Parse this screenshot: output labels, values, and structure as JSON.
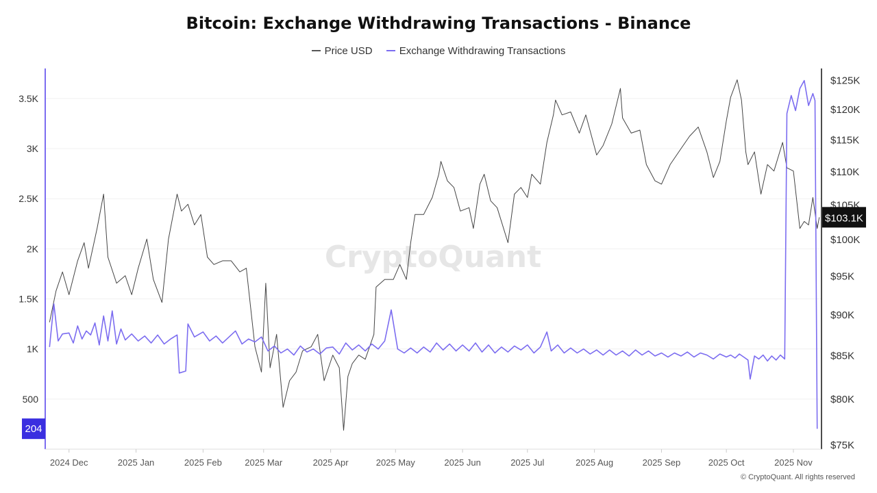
{
  "title": "Bitcoin: Exchange Withdrawing Transactions - Binance",
  "legend": [
    {
      "label": "Price USD",
      "color": "#555555"
    },
    {
      "label": "Exchange Withdrawing Transactions",
      "color": "#7b6cf0"
    }
  ],
  "watermark": "CryptoQuant",
  "copyright": "© CryptoQuant. All rights reserved",
  "chart_data": {
    "type": "line",
    "title": "Bitcoin: Exchange Withdrawing Transactions - Binance",
    "x_ticks": [
      "2024 Dec",
      "2025 Jan",
      "2025 Feb",
      "2025 Mar",
      "2025 Apr",
      "2025 May",
      "2025 Jun",
      "2025 Jul",
      "2025 Aug",
      "2025 Sep",
      "2025 Oct",
      "2025 Nov"
    ],
    "x_tick_dates": [
      "2024-12-01",
      "2025-01-01",
      "2025-02-01",
      "2025-03-01",
      "2025-04-01",
      "2025-05-01",
      "2025-06-01",
      "2025-07-01",
      "2025-08-01",
      "2025-09-01",
      "2025-10-01",
      "2025-11-01"
    ],
    "y_left": {
      "ticks": [
        "500",
        "1K",
        "1.5K",
        "2K",
        "2.5K",
        "3K",
        "3.5K"
      ],
      "range": [
        0,
        3800
      ]
    },
    "y_right": {
      "ticks": [
        "$75K",
        "$80K",
        "$85K",
        "$90K",
        "$95K",
        "$100K",
        "$105K",
        "$110K",
        "$115K",
        "$120K",
        "$125K"
      ],
      "scale": "log",
      "range": [
        74500,
        127000
      ]
    },
    "last_values": {
      "transactions": "204",
      "price": "$103.1K"
    },
    "grid": "horizontal",
    "legend_position": "top-center",
    "series": [
      {
        "name": "Price USD",
        "axis": "right",
        "color": "#444444",
        "points": [
          [
            "2024-11-22",
            89000
          ],
          [
            "2024-11-25",
            93000
          ],
          [
            "2024-11-28",
            95500
          ],
          [
            "2024-12-01",
            92500
          ],
          [
            "2024-12-05",
            97000
          ],
          [
            "2024-12-08",
            99500
          ],
          [
            "2024-12-10",
            96000
          ],
          [
            "2024-12-14",
            101500
          ],
          [
            "2024-12-17",
            106500
          ],
          [
            "2024-12-19",
            97500
          ],
          [
            "2024-12-23",
            94000
          ],
          [
            "2024-12-27",
            95000
          ],
          [
            "2024-12-30",
            92500
          ],
          [
            "2025-01-02",
            96000
          ],
          [
            "2025-01-06",
            100000
          ],
          [
            "2025-01-09",
            94500
          ],
          [
            "2025-01-13",
            91500
          ],
          [
            "2025-01-16",
            100000
          ],
          [
            "2025-01-20",
            106500
          ],
          [
            "2025-01-22",
            104000
          ],
          [
            "2025-01-25",
            105000
          ],
          [
            "2025-01-28",
            102000
          ],
          [
            "2025-01-31",
            103500
          ],
          [
            "2025-02-03",
            97500
          ],
          [
            "2025-02-06",
            96500
          ],
          [
            "2025-02-10",
            97000
          ],
          [
            "2025-02-14",
            97000
          ],
          [
            "2025-02-18",
            95500
          ],
          [
            "2025-02-21",
            96000
          ],
          [
            "2025-02-25",
            86000
          ],
          [
            "2025-02-28",
            83000
          ],
          [
            "2025-03-02",
            94000
          ],
          [
            "2025-03-04",
            83500
          ],
          [
            "2025-03-07",
            87500
          ],
          [
            "2025-03-10",
            79000
          ],
          [
            "2025-03-13",
            82000
          ],
          [
            "2025-03-16",
            83000
          ],
          [
            "2025-03-19",
            85500
          ],
          [
            "2025-03-23",
            86000
          ],
          [
            "2025-03-26",
            87500
          ],
          [
            "2025-03-29",
            82000
          ],
          [
            "2025-04-02",
            85000
          ],
          [
            "2025-04-05",
            83500
          ],
          [
            "2025-04-07",
            76500
          ],
          [
            "2025-04-09",
            82500
          ],
          [
            "2025-04-11",
            84000
          ],
          [
            "2025-04-14",
            85000
          ],
          [
            "2025-04-17",
            84500
          ],
          [
            "2025-04-21",
            87500
          ],
          [
            "2025-04-22",
            93500
          ],
          [
            "2025-04-26",
            94500
          ],
          [
            "2025-04-30",
            94500
          ],
          [
            "2025-05-03",
            96500
          ],
          [
            "2025-05-06",
            94500
          ],
          [
            "2025-05-08",
            99500
          ],
          [
            "2025-05-10",
            103500
          ],
          [
            "2025-05-14",
            103500
          ],
          [
            "2025-05-18",
            106000
          ],
          [
            "2025-05-21",
            109500
          ],
          [
            "2025-05-22",
            111500
          ],
          [
            "2025-05-25",
            108500
          ],
          [
            "2025-05-28",
            107500
          ],
          [
            "2025-05-31",
            104000
          ],
          [
            "2025-06-04",
            104500
          ],
          [
            "2025-06-06",
            101500
          ],
          [
            "2025-06-09",
            108000
          ],
          [
            "2025-06-11",
            109500
          ],
          [
            "2025-06-14",
            105500
          ],
          [
            "2025-06-17",
            104500
          ],
          [
            "2025-06-22",
            99500
          ],
          [
            "2025-06-25",
            106500
          ],
          [
            "2025-06-28",
            107500
          ],
          [
            "2025-07-01",
            106000
          ],
          [
            "2025-07-03",
            109500
          ],
          [
            "2025-07-07",
            108000
          ],
          [
            "2025-07-10",
            114500
          ],
          [
            "2025-07-13",
            119000
          ],
          [
            "2025-07-14",
            121500
          ],
          [
            "2025-07-17",
            119000
          ],
          [
            "2025-07-21",
            119500
          ],
          [
            "2025-07-25",
            116000
          ],
          [
            "2025-07-28",
            119000
          ],
          [
            "2025-08-02",
            112500
          ],
          [
            "2025-08-05",
            114000
          ],
          [
            "2025-08-09",
            117500
          ],
          [
            "2025-08-13",
            123500
          ],
          [
            "2025-08-14",
            118500
          ],
          [
            "2025-08-18",
            116000
          ],
          [
            "2025-08-22",
            116500
          ],
          [
            "2025-08-25",
            111000
          ],
          [
            "2025-08-29",
            108500
          ],
          [
            "2025-09-01",
            108000
          ],
          [
            "2025-09-05",
            111000
          ],
          [
            "2025-09-10",
            113500
          ],
          [
            "2025-09-14",
            115500
          ],
          [
            "2025-09-18",
            117000
          ],
          [
            "2025-09-22",
            113000
          ],
          [
            "2025-09-25",
            109000
          ],
          [
            "2025-09-28",
            111500
          ],
          [
            "2025-10-01",
            118000
          ],
          [
            "2025-10-03",
            122000
          ],
          [
            "2025-10-06",
            125000
          ],
          [
            "2025-10-08",
            121500
          ],
          [
            "2025-10-10",
            113000
          ],
          [
            "2025-10-11",
            111000
          ],
          [
            "2025-10-14",
            113000
          ],
          [
            "2025-10-17",
            106500
          ],
          [
            "2025-10-20",
            111000
          ],
          [
            "2025-10-23",
            110000
          ],
          [
            "2025-10-27",
            114500
          ],
          [
            "2025-10-29",
            110500
          ],
          [
            "2025-11-01",
            110000
          ],
          [
            "2025-11-04",
            101500
          ],
          [
            "2025-11-06",
            102500
          ],
          [
            "2025-11-08",
            102000
          ],
          [
            "2025-11-10",
            106000
          ],
          [
            "2025-11-12",
            101500
          ],
          [
            "2025-11-13",
            103100
          ]
        ]
      },
      {
        "name": "Exchange Withdrawing Transactions",
        "axis": "left",
        "color": "#7b6cf0",
        "points": [
          [
            "2024-11-22",
            1020
          ],
          [
            "2024-11-24",
            1450
          ],
          [
            "2024-11-26",
            1080
          ],
          [
            "2024-11-28",
            1150
          ],
          [
            "2024-12-01",
            1160
          ],
          [
            "2024-12-03",
            1060
          ],
          [
            "2024-12-05",
            1230
          ],
          [
            "2024-12-07",
            1100
          ],
          [
            "2024-12-09",
            1180
          ],
          [
            "2024-12-11",
            1140
          ],
          [
            "2024-12-13",
            1260
          ],
          [
            "2024-12-15",
            1040
          ],
          [
            "2024-12-17",
            1330
          ],
          [
            "2024-12-19",
            1080
          ],
          [
            "2024-12-21",
            1380
          ],
          [
            "2024-12-23",
            1050
          ],
          [
            "2024-12-25",
            1200
          ],
          [
            "2024-12-27",
            1090
          ],
          [
            "2024-12-30",
            1150
          ],
          [
            "2025-01-02",
            1080
          ],
          [
            "2025-01-05",
            1130
          ],
          [
            "2025-01-08",
            1060
          ],
          [
            "2025-01-11",
            1140
          ],
          [
            "2025-01-14",
            1050
          ],
          [
            "2025-01-17",
            1100
          ],
          [
            "2025-01-20",
            1140
          ],
          [
            "2025-01-21",
            760
          ],
          [
            "2025-01-24",
            780
          ],
          [
            "2025-01-25",
            1250
          ],
          [
            "2025-01-28",
            1120
          ],
          [
            "2025-02-01",
            1170
          ],
          [
            "2025-02-04",
            1080
          ],
          [
            "2025-02-07",
            1130
          ],
          [
            "2025-02-10",
            1060
          ],
          [
            "2025-02-13",
            1120
          ],
          [
            "2025-02-16",
            1180
          ],
          [
            "2025-02-19",
            1050
          ],
          [
            "2025-02-22",
            1100
          ],
          [
            "2025-02-25",
            1070
          ],
          [
            "2025-02-28",
            1120
          ],
          [
            "2025-03-03",
            980
          ],
          [
            "2025-03-06",
            1030
          ],
          [
            "2025-03-09",
            960
          ],
          [
            "2025-03-12",
            1000
          ],
          [
            "2025-03-15",
            940
          ],
          [
            "2025-03-18",
            1030
          ],
          [
            "2025-03-21",
            970
          ],
          [
            "2025-03-24",
            1000
          ],
          [
            "2025-03-27",
            950
          ],
          [
            "2025-03-30",
            1010
          ],
          [
            "2025-04-02",
            1020
          ],
          [
            "2025-04-05",
            950
          ],
          [
            "2025-04-08",
            1060
          ],
          [
            "2025-04-11",
            990
          ],
          [
            "2025-04-14",
            1040
          ],
          [
            "2025-04-17",
            980
          ],
          [
            "2025-04-20",
            1050
          ],
          [
            "2025-04-23",
            1000
          ],
          [
            "2025-04-26",
            1080
          ],
          [
            "2025-04-29",
            1390
          ],
          [
            "2025-05-02",
            1000
          ],
          [
            "2025-05-05",
            960
          ],
          [
            "2025-05-08",
            1010
          ],
          [
            "2025-05-11",
            960
          ],
          [
            "2025-05-14",
            1020
          ],
          [
            "2025-05-17",
            970
          ],
          [
            "2025-05-20",
            1060
          ],
          [
            "2025-05-23",
            990
          ],
          [
            "2025-05-26",
            1050
          ],
          [
            "2025-05-29",
            980
          ],
          [
            "2025-06-01",
            1040
          ],
          [
            "2025-06-04",
            980
          ],
          [
            "2025-06-07",
            1060
          ],
          [
            "2025-06-10",
            970
          ],
          [
            "2025-06-13",
            1040
          ],
          [
            "2025-06-16",
            960
          ],
          [
            "2025-06-19",
            1020
          ],
          [
            "2025-06-22",
            970
          ],
          [
            "2025-06-25",
            1030
          ],
          [
            "2025-06-28",
            990
          ],
          [
            "2025-07-01",
            1040
          ],
          [
            "2025-07-04",
            960
          ],
          [
            "2025-07-07",
            1020
          ],
          [
            "2025-07-10",
            1170
          ],
          [
            "2025-07-12",
            980
          ],
          [
            "2025-07-15",
            1040
          ],
          [
            "2025-07-18",
            960
          ],
          [
            "2025-07-21",
            1010
          ],
          [
            "2025-07-24",
            960
          ],
          [
            "2025-07-27",
            1000
          ],
          [
            "2025-07-30",
            950
          ],
          [
            "2025-08-02",
            990
          ],
          [
            "2025-08-05",
            940
          ],
          [
            "2025-08-08",
            990
          ],
          [
            "2025-08-11",
            940
          ],
          [
            "2025-08-14",
            980
          ],
          [
            "2025-08-17",
            930
          ],
          [
            "2025-08-20",
            990
          ],
          [
            "2025-08-23",
            940
          ],
          [
            "2025-08-26",
            980
          ],
          [
            "2025-08-29",
            930
          ],
          [
            "2025-09-01",
            960
          ],
          [
            "2025-09-04",
            920
          ],
          [
            "2025-09-07",
            960
          ],
          [
            "2025-09-10",
            930
          ],
          [
            "2025-09-13",
            970
          ],
          [
            "2025-09-16",
            920
          ],
          [
            "2025-09-19",
            960
          ],
          [
            "2025-09-22",
            940
          ],
          [
            "2025-09-25",
            900
          ],
          [
            "2025-09-28",
            950
          ],
          [
            "2025-10-01",
            920
          ],
          [
            "2025-10-03",
            940
          ],
          [
            "2025-10-05",
            910
          ],
          [
            "2025-10-07",
            950
          ],
          [
            "2025-10-09",
            920
          ],
          [
            "2025-10-11",
            890
          ],
          [
            "2025-10-12",
            700
          ],
          [
            "2025-10-14",
            930
          ],
          [
            "2025-10-16",
            900
          ],
          [
            "2025-10-18",
            940
          ],
          [
            "2025-10-20",
            880
          ],
          [
            "2025-10-22",
            930
          ],
          [
            "2025-10-24",
            890
          ],
          [
            "2025-10-26",
            940
          ],
          [
            "2025-10-28",
            900
          ],
          [
            "2025-10-29",
            3350
          ],
          [
            "2025-10-31",
            3530
          ],
          [
            "2025-11-02",
            3380
          ],
          [
            "2025-11-04",
            3600
          ],
          [
            "2025-11-06",
            3680
          ],
          [
            "2025-11-08",
            3430
          ],
          [
            "2025-11-10",
            3550
          ],
          [
            "2025-11-11",
            3480
          ],
          [
            "2025-11-12",
            204
          ]
        ]
      }
    ]
  }
}
